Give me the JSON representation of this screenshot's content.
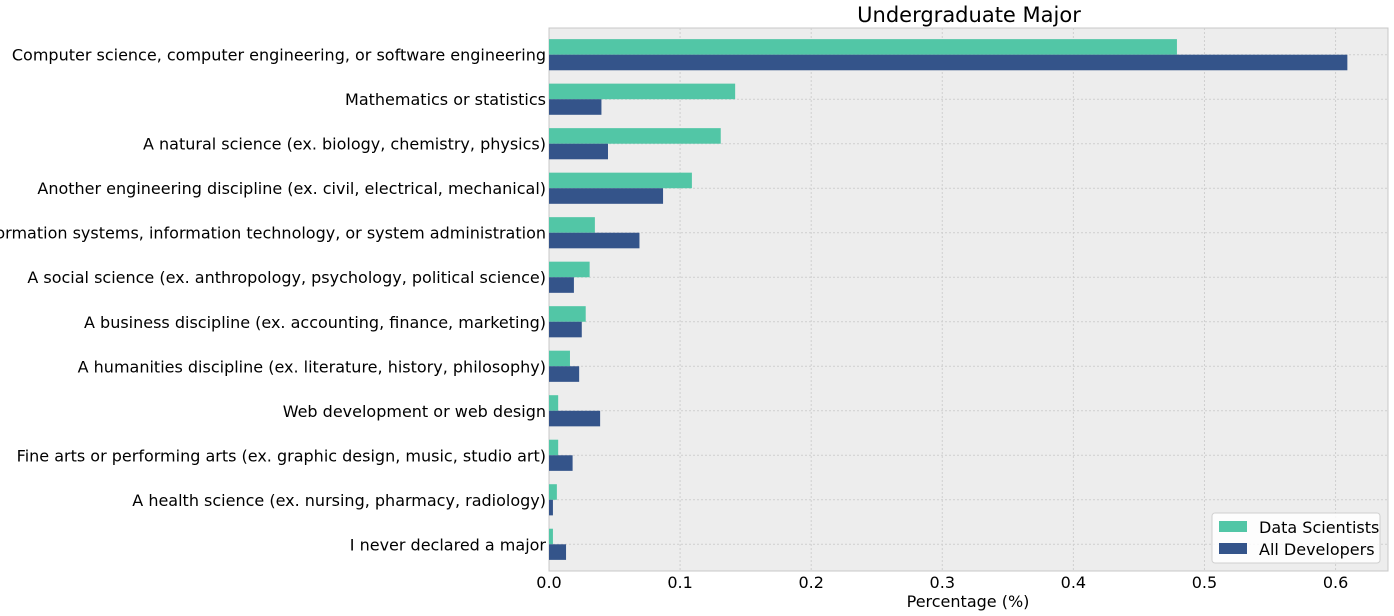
{
  "chart_data": {
    "type": "bar",
    "orientation": "horizontal",
    "title": "Undergraduate Major",
    "xlabel": "Percentage (%)",
    "ylabel": "",
    "xlim": [
      0,
      0.64
    ],
    "xticks": [
      0.0,
      0.1,
      0.2,
      0.3,
      0.4,
      0.5,
      0.6
    ],
    "xtick_labels": [
      "0.0",
      "0.1",
      "0.2",
      "0.3",
      "0.4",
      "0.5",
      "0.6"
    ],
    "grid": true,
    "legend_position": "bottom-right",
    "categories": [
      "Computer science, computer engineering, or software engineering",
      "Mathematics or statistics",
      "A natural science (ex. biology, chemistry, physics)",
      "Another engineering discipline (ex. civil, electrical, mechanical)",
      "Information systems, information technology, or system administration",
      "A social science (ex. anthropology, psychology, political science)",
      "A business discipline (ex. accounting, finance, marketing)",
      "A humanities discipline (ex. literature, history, philosophy)",
      "Web development or web design",
      "Fine arts or performing arts (ex. graphic design, music, studio art)",
      "A health science (ex. nursing, pharmacy, radiology)",
      "I never declared a major"
    ],
    "series": [
      {
        "name": "Data Scientists",
        "color": "#52c6a6",
        "values": [
          0.479,
          0.142,
          0.131,
          0.109,
          0.035,
          0.031,
          0.028,
          0.016,
          0.007,
          0.007,
          0.006,
          0.003
        ]
      },
      {
        "name": "All Developers",
        "color": "#34548a",
        "values": [
          0.609,
          0.04,
          0.045,
          0.087,
          0.069,
          0.019,
          0.025,
          0.023,
          0.039,
          0.018,
          0.003,
          0.013
        ]
      }
    ]
  }
}
